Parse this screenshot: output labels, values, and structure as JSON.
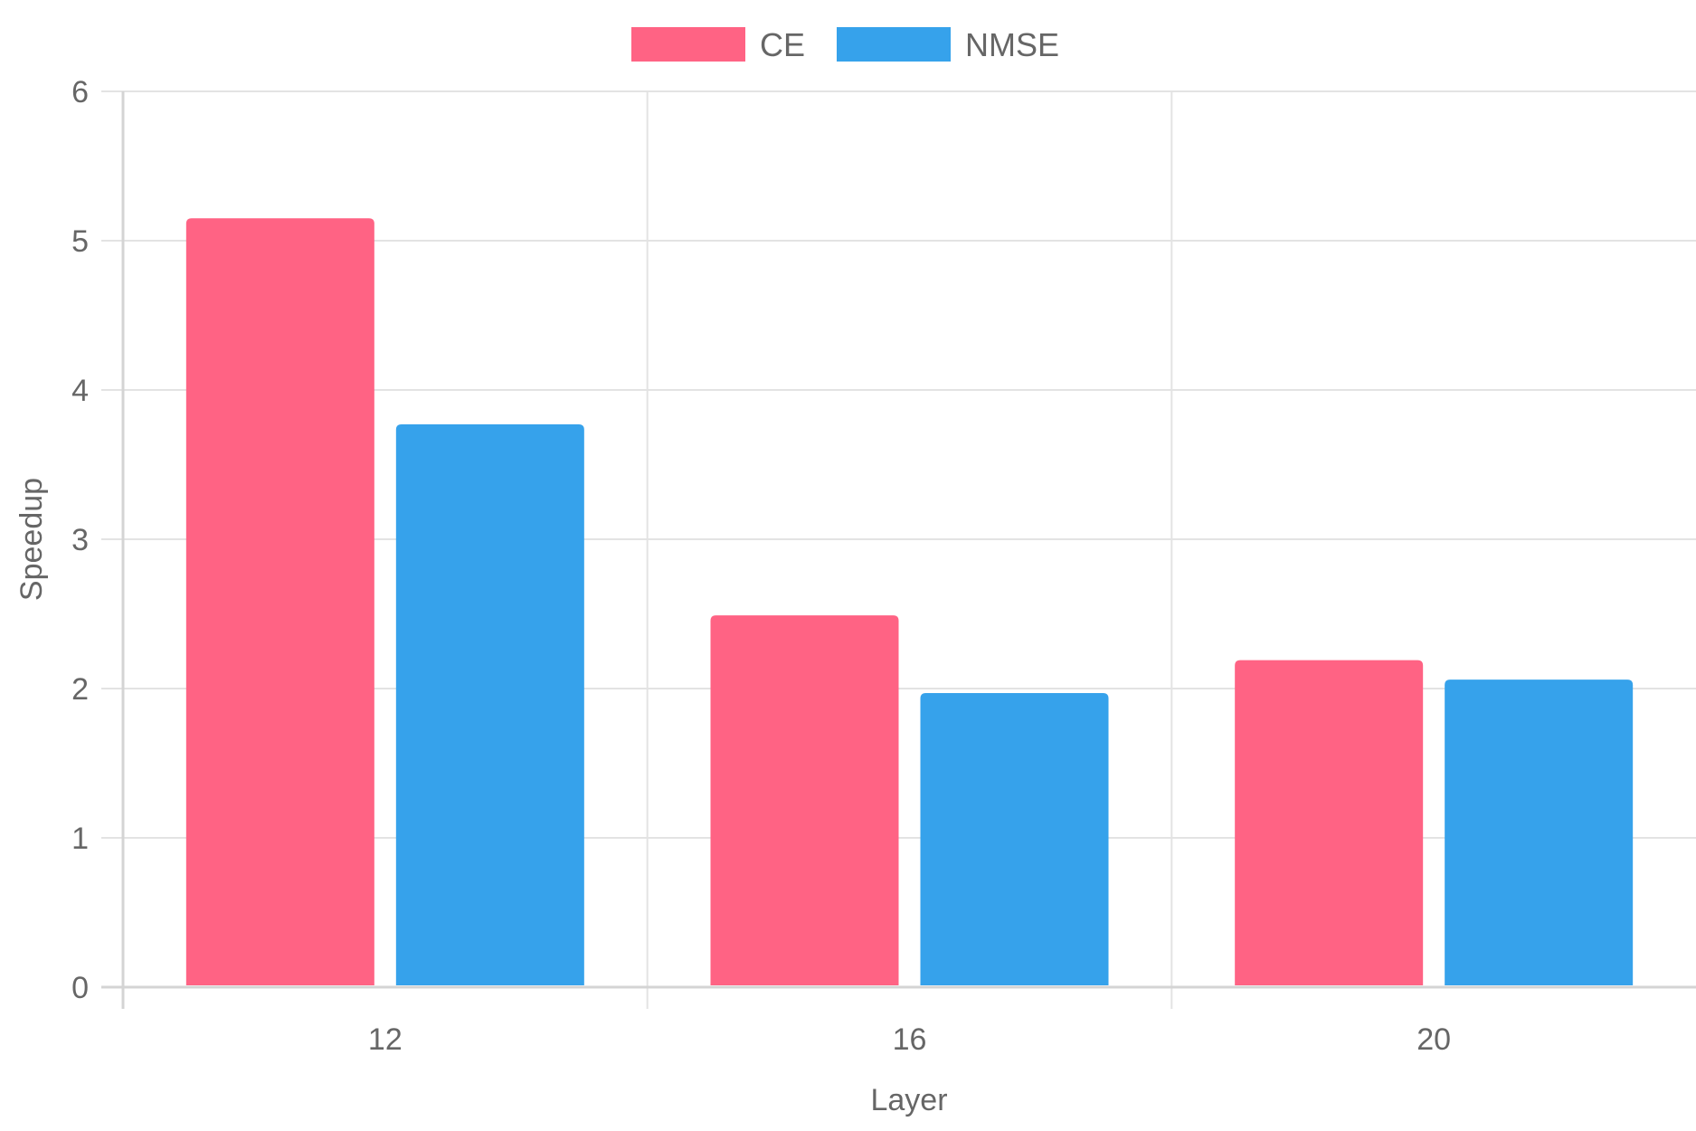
{
  "chart_data": {
    "type": "bar",
    "categories": [
      "12",
      "16",
      "20"
    ],
    "series": [
      {
        "name": "CE",
        "values": [
          5.15,
          2.49,
          2.19
        ],
        "color": "#ff6384"
      },
      {
        "name": "NMSE",
        "values": [
          3.77,
          1.97,
          2.06
        ],
        "color": "#36a2eb"
      }
    ],
    "xlabel": "Layer",
    "ylabel": "Speedup",
    "ylim": [
      0,
      6
    ],
    "yticks": [
      "0",
      "1",
      "2",
      "3",
      "4",
      "5",
      "6"
    ],
    "grid": true,
    "legend_position": "top-center"
  }
}
